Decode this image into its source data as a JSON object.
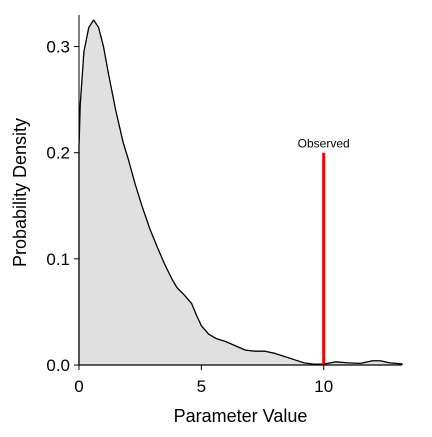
{
  "chart_data": {
    "type": "area",
    "title": "",
    "xlabel": "Parameter Value",
    "ylabel": "Probability Density",
    "xlim": [
      0,
      13.2
    ],
    "ylim": [
      0,
      0.325
    ],
    "grid": false,
    "legend": "none",
    "x_ticks": [
      0,
      5,
      10
    ],
    "x_tick_labels": [
      "0",
      "5",
      "10"
    ],
    "y_ticks": [
      0,
      0.1,
      0.2,
      0.3
    ],
    "y_tick_labels": [
      "0.0",
      "0.1",
      "0.2",
      "0.3"
    ],
    "fill_color": "#e0e0e0",
    "line_color": "#000000",
    "series": [
      {
        "x": [
          0,
          0.05,
          0.2,
          0.4,
          0.6,
          0.8,
          1.0,
          1.2,
          1.5,
          1.8,
          2.0,
          2.3,
          2.6,
          2.9,
          3.2,
          3.5,
          3.8,
          4.0,
          4.3,
          4.6,
          4.8,
          5.0,
          5.3,
          5.6,
          6.0,
          6.4,
          6.8,
          7.2,
          7.6,
          8.0,
          8.4,
          8.8,
          9.2,
          9.6,
          10.0,
          10.5,
          11.0,
          11.5,
          12.0,
          12.3,
          12.7,
          13.2
        ],
        "y": [
          0.205,
          0.245,
          0.295,
          0.318,
          0.325,
          0.318,
          0.3,
          0.275,
          0.24,
          0.21,
          0.195,
          0.17,
          0.148,
          0.128,
          0.111,
          0.095,
          0.081,
          0.073,
          0.066,
          0.058,
          0.047,
          0.037,
          0.029,
          0.025,
          0.022,
          0.018,
          0.014,
          0.013,
          0.013,
          0.011,
          0.008,
          0.005,
          0.002,
          0.0008,
          0.0008,
          0.003,
          0.002,
          0.0015,
          0.004,
          0.004,
          0.002,
          0.001
        ]
      }
    ],
    "annotations": [
      {
        "type": "vline",
        "x": 10,
        "y_from": 0,
        "y_to": 0.2,
        "color": "#ff0000",
        "label": "Observed"
      }
    ]
  }
}
